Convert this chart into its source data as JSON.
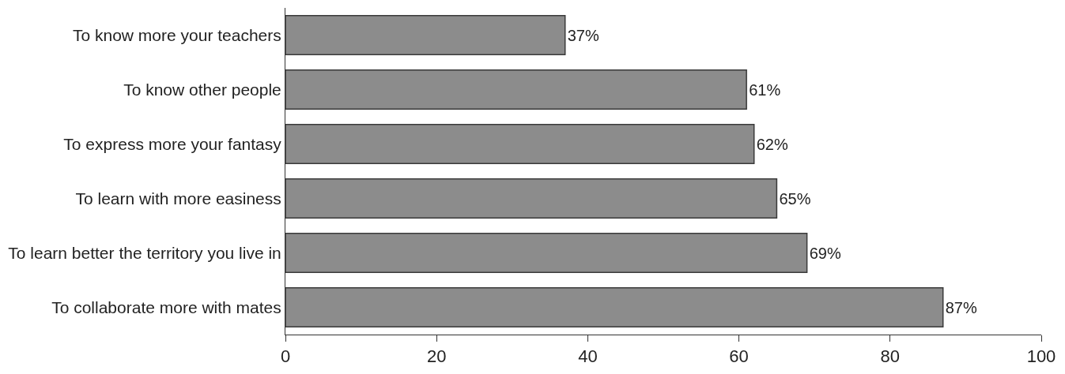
{
  "chart_data": {
    "type": "bar",
    "orientation": "horizontal",
    "categories": [
      "To know more your teachers",
      "To know other people",
      "To express more your fantasy",
      "To learn with more easiness",
      "To learn better the territory you live in",
      "To collaborate more with mates"
    ],
    "values": [
      37,
      61,
      62,
      65,
      69,
      87
    ],
    "value_labels": [
      "37%",
      "61%",
      "62%",
      "65%",
      "69%",
      "87%"
    ],
    "color": "#8c8c8c",
    "xlim": [
      0,
      100
    ],
    "xticks": [
      0,
      20,
      40,
      60,
      80,
      100
    ],
    "legend": false
  }
}
